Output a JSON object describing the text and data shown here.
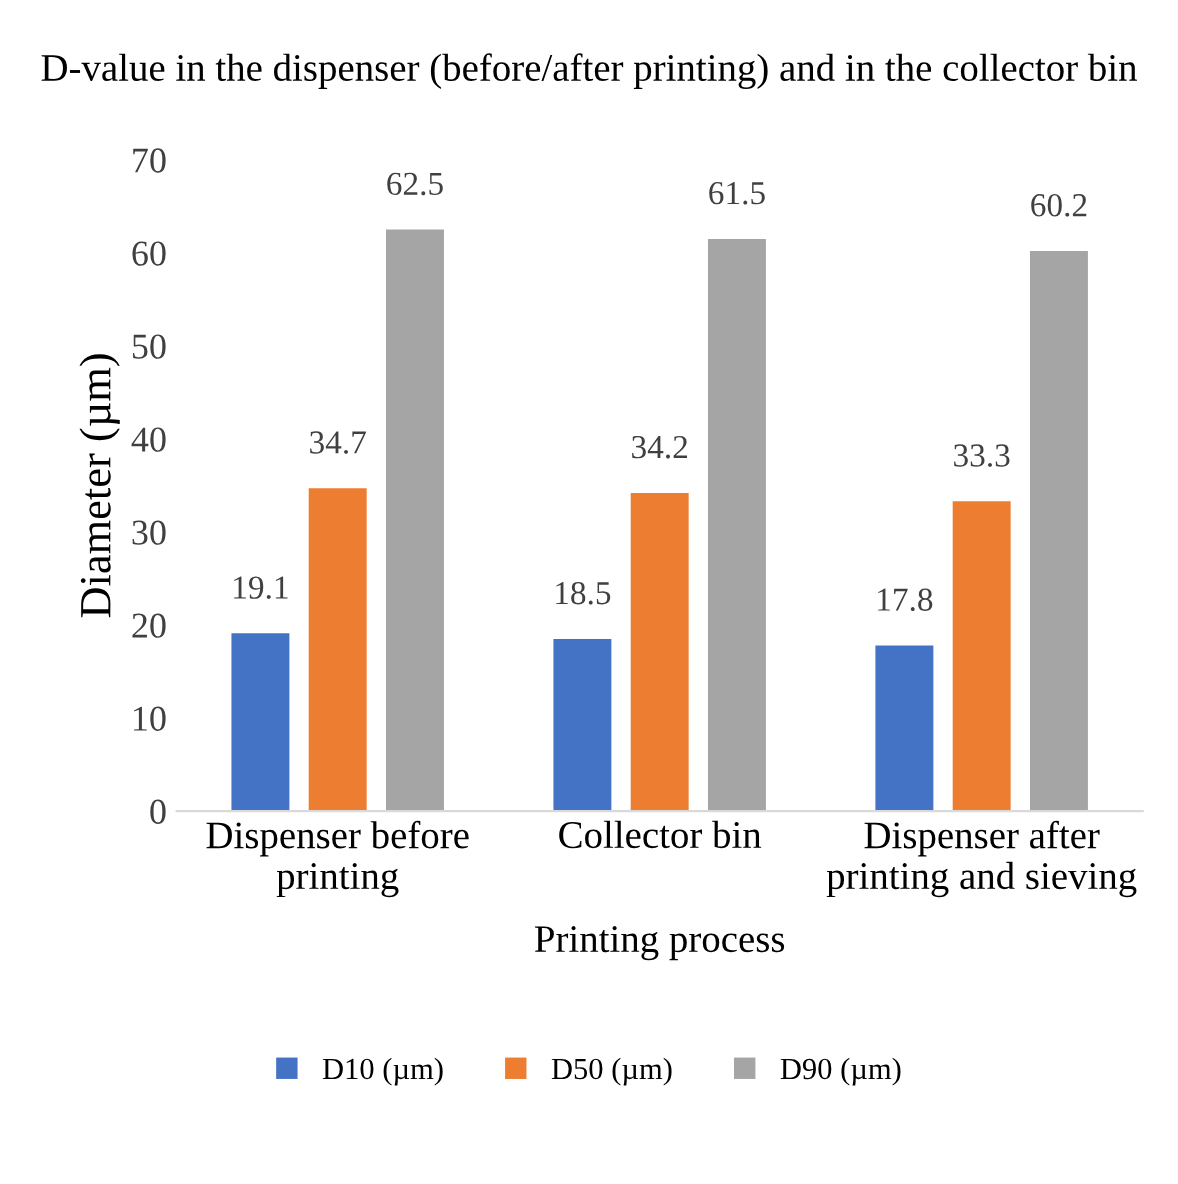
{
  "chart_data": {
    "type": "bar",
    "title": "D-value in the dispenser (before/after printing) and in the collector bin",
    "xlabel": "Printing process",
    "ylabel": "Diameter (µm)",
    "categories": [
      "Dispenser before\nprinting",
      "Collector bin",
      "Dispenser after\nprinting and sieving"
    ],
    "series": [
      {
        "name": "D10 (µm)",
        "color": "#4472c4",
        "values": [
          19.1,
          18.5,
          17.8
        ]
      },
      {
        "name": "D50 (µm)",
        "color": "#ed7d31",
        "values": [
          34.7,
          34.2,
          33.3
        ]
      },
      {
        "name": "D90 (µm)",
        "color": "#a5a5a5",
        "values": [
          62.5,
          61.5,
          60.2
        ]
      }
    ],
    "ylim": [
      0,
      70
    ],
    "yticks": [
      0,
      10,
      20,
      30,
      40,
      50,
      60,
      70
    ],
    "data_labels": true,
    "grid": false,
    "legend": "bottom"
  }
}
